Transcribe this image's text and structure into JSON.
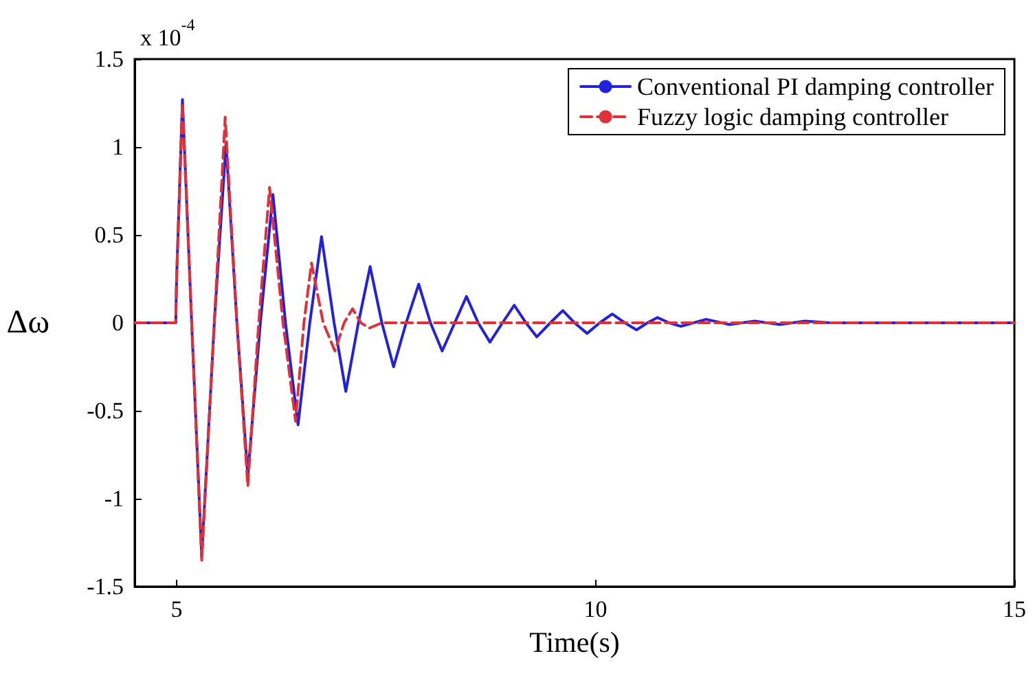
{
  "chart_data": {
    "type": "line",
    "xlabel": "Time(s)",
    "ylabel": "Δω",
    "annotations": [
      "x 10$^{-4}$"
    ],
    "xlim": [
      4.5,
      15
    ],
    "xticks": [
      5,
      10,
      15
    ],
    "ylim": [
      -1.5,
      1.5
    ],
    "yticks": [
      -1.5,
      -1,
      -0.5,
      0,
      0.5,
      1,
      1.5
    ],
    "grid": false,
    "legend": "top right",
    "marker": "none",
    "series": [
      {
        "name": "Conventional PI damping controller",
        "color": "#2222dd",
        "line_style": "solid",
        "x": [
          4.5,
          4.99,
          5.0,
          5.07,
          5.18,
          5.3,
          5.45,
          5.59,
          5.72,
          5.85,
          6.0,
          6.15,
          6.3,
          6.45,
          6.59,
          6.73,
          6.88,
          7.02,
          7.17,
          7.31,
          7.45,
          7.59,
          7.74,
          7.89,
          8.03,
          8.17,
          8.32,
          8.46,
          8.6,
          8.74,
          8.89,
          9.03,
          9.17,
          9.3,
          9.46,
          9.61,
          9.75,
          9.9,
          10.05,
          10.2,
          10.35,
          10.49,
          10.62,
          10.74,
          10.88,
          11.02,
          11.17,
          11.32,
          11.6,
          11.9,
          12.2,
          12.5,
          12.8,
          15
        ],
        "values": [
          0,
          0,
          0.25,
          1.27,
          0,
          -1.33,
          0,
          1.02,
          0,
          -0.87,
          0,
          0.73,
          0,
          -0.58,
          0,
          0.49,
          0,
          -0.39,
          0,
          0.32,
          0,
          -0.25,
          0,
          0.22,
          0,
          -0.16,
          0,
          0.15,
          0,
          -0.11,
          0,
          0.1,
          0,
          -0.08,
          0,
          0.07,
          0,
          -0.06,
          0,
          0.05,
          0,
          -0.04,
          0,
          0.03,
          0,
          -0.02,
          0,
          0.02,
          -0.01,
          0.01,
          -0.01,
          0.01,
          0,
          0
        ]
      },
      {
        "name": "Fuzzy logic damping controller",
        "color": "#e0303a",
        "line_style": "dashed",
        "x": [
          4.5,
          4.99,
          5.0,
          5.07,
          5.18,
          5.3,
          5.45,
          5.58,
          5.72,
          5.85,
          5.98,
          6.11,
          6.27,
          6.42,
          6.52,
          6.61,
          6.75,
          6.89,
          7.0,
          7.1,
          7.2,
          7.3,
          7.45,
          15
        ],
        "values": [
          0,
          0,
          0.25,
          1.25,
          0,
          -1.35,
          0,
          1.17,
          0,
          -0.93,
          0,
          0.77,
          0,
          -0.56,
          0,
          0.34,
          0,
          -0.16,
          0,
          0.08,
          0,
          -0.03,
          0,
          0
        ]
      }
    ]
  }
}
